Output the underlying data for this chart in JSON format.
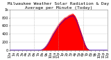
{
  "title": "Milwaukee Weather Solar Radiation & Day Average per Minute (Today)",
  "background_color": "#ffffff",
  "plot_bg_color": "#ffffff",
  "bar_color": "#ff0000",
  "avg_line_color": "#0000ff",
  "grid_color": "#cccccc",
  "ylim": [
    0,
    1000
  ],
  "xlim": [
    0,
    1440
  ],
  "yticks": [
    0,
    200,
    400,
    600,
    800,
    1000
  ],
  "ytick_labels": [
    "0",
    "200",
    "400",
    "600",
    "800",
    "1k"
  ],
  "vline_positions": [
    360,
    720,
    1080
  ],
  "vline_color": "#aaaaaa",
  "solar_data_x": [
    0,
    30,
    60,
    90,
    120,
    150,
    180,
    210,
    240,
    270,
    300,
    330,
    360,
    390,
    420,
    450,
    480,
    510,
    540,
    570,
    600,
    630,
    660,
    690,
    720,
    750,
    780,
    810,
    840,
    870,
    900,
    930,
    960,
    990,
    1020,
    1050,
    1080,
    1110,
    1140,
    1170,
    1200,
    1230,
    1260,
    1290,
    1320,
    1350,
    1380,
    1410,
    1440
  ],
  "solar_data_y": [
    0,
    0,
    0,
    0,
    0,
    0,
    0,
    0,
    0,
    0,
    0,
    0,
    0,
    0,
    0,
    5,
    20,
    60,
    120,
    200,
    300,
    400,
    480,
    560,
    640,
    700,
    750,
    800,
    820,
    860,
    880,
    900,
    850,
    750,
    600,
    450,
    300,
    150,
    50,
    10,
    0,
    0,
    0,
    0,
    0,
    0,
    0,
    0,
    0
  ],
  "avg_data_x": [
    0,
    30,
    60,
    90,
    120,
    150,
    180,
    210,
    240,
    270,
    300,
    330,
    360,
    390,
    420,
    450,
    480,
    510,
    540,
    570,
    600,
    630,
    660,
    690,
    720,
    750,
    780,
    810,
    840,
    870,
    900,
    930,
    960,
    990,
    1020,
    1050,
    1080,
    1110,
    1140,
    1170,
    1200,
    1230,
    1260,
    1290,
    1320,
    1350,
    1380,
    1410,
    1440
  ],
  "avg_data_y": [
    0,
    0,
    0,
    0,
    0,
    0,
    0,
    0,
    0,
    0,
    0,
    0,
    0,
    0,
    0,
    3,
    15,
    45,
    100,
    170,
    260,
    350,
    430,
    510,
    590,
    650,
    700,
    750,
    780,
    810,
    830,
    850,
    800,
    700,
    560,
    420,
    280,
    130,
    40,
    8,
    0,
    0,
    0,
    0,
    0,
    0,
    0,
    0,
    0
  ],
  "tick_fontsize": 3.5,
  "title_fontsize": 4.5
}
